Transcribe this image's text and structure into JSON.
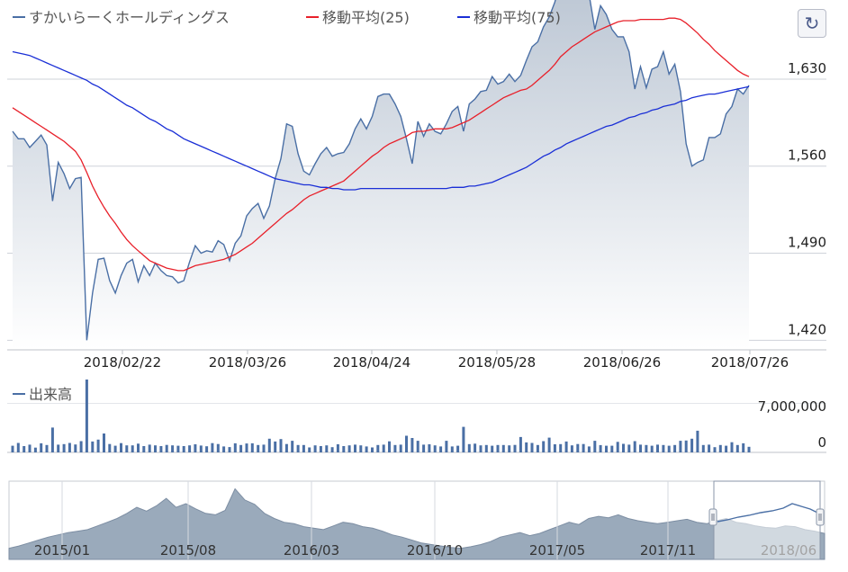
{
  "refresh_icon": "refresh-icon",
  "chart_data": [
    {
      "type": "line",
      "title": "",
      "legend": {
        "placement": "top-left",
        "items": [
          "すかいらーくホールディングス",
          "移動平均(25)",
          "移動平均(75)"
        ]
      },
      "colors": {
        "price": "#4a6fa5",
        "ma25": "#e8202a",
        "ma75": "#1a2fd6",
        "area_top": "#b9c4d2",
        "area_bottom": "#ffffff",
        "grid": "#cfd3da"
      },
      "x_tick_labels": [
        "2018/02/22",
        "2018/03/26",
        "2018/04/24",
        "2018/05/28",
        "2018/06/26",
        "2018/07/26"
      ],
      "y_tick_labels": [
        "1,420",
        "1,490",
        "1,560",
        "1,630"
      ],
      "ylim": [
        1413,
        1690
      ],
      "grid": true,
      "series": [
        {
          "name": "すかいらーくホールディングス",
          "values": [
            1588,
            1582,
            1582,
            1575,
            1580,
            1585,
            1577,
            1532,
            1563,
            1554,
            1542,
            1550,
            1551,
            1420,
            1458,
            1485,
            1486,
            1468,
            1458,
            1472,
            1482,
            1485,
            1467,
            1480,
            1472,
            1482,
            1476,
            1472,
            1471,
            1466,
            1468,
            1483,
            1496,
            1490,
            1492,
            1491,
            1500,
            1497,
            1484,
            1498,
            1504,
            1520,
            1526,
            1530,
            1518,
            1528,
            1550,
            1566,
            1594,
            1592,
            1570,
            1556,
            1553,
            1562,
            1570,
            1575,
            1568,
            1570,
            1571,
            1578,
            1590,
            1598,
            1590,
            1600,
            1616,
            1618,
            1618,
            1610,
            1600,
            1582,
            1562,
            1596,
            1584,
            1594,
            1588,
            1586,
            1594,
            1604,
            1608,
            1588,
            1610,
            1614,
            1620,
            1621,
            1632,
            1626,
            1628,
            1634,
            1628,
            1633,
            1645,
            1656,
            1660,
            1672,
            1680,
            1692,
            1710,
            1705,
            1718,
            1710,
            1696,
            1698,
            1670,
            1689,
            1682,
            1670,
            1664,
            1664,
            1652,
            1622,
            1640,
            1623,
            1638,
            1640,
            1652,
            1634,
            1642,
            1620,
            1578,
            1560,
            1563,
            1565,
            1583,
            1583,
            1586,
            1602,
            1608,
            1622,
            1618,
            1625
          ]
        },
        {
          "name": "移動平均(25)",
          "values": [
            1607,
            1604,
            1601,
            1598,
            1595,
            1592,
            1589,
            1586,
            1583,
            1580,
            1576,
            1572,
            1565,
            1555,
            1544,
            1535,
            1527,
            1520,
            1514,
            1507,
            1501,
            1496,
            1492,
            1488,
            1484,
            1482,
            1480,
            1478,
            1477,
            1476,
            1476,
            1478,
            1480,
            1481,
            1482,
            1483,
            1484,
            1485,
            1487,
            1489,
            1492,
            1495,
            1498,
            1502,
            1506,
            1510,
            1514,
            1518,
            1522,
            1525,
            1529,
            1533,
            1536,
            1538,
            1540,
            1542,
            1544,
            1546,
            1548,
            1552,
            1556,
            1560,
            1564,
            1568,
            1571,
            1575,
            1578,
            1580,
            1582,
            1584,
            1587,
            1588,
            1588,
            1589,
            1590,
            1590,
            1590,
            1591,
            1593,
            1595,
            1597,
            1600,
            1603,
            1606,
            1609,
            1612,
            1615,
            1617,
            1619,
            1621,
            1622,
            1625,
            1629,
            1633,
            1637,
            1642,
            1648,
            1652,
            1656,
            1659,
            1662,
            1665,
            1668,
            1670,
            1672,
            1674,
            1676,
            1677,
            1677,
            1677,
            1678,
            1678,
            1678,
            1678,
            1678,
            1679,
            1679,
            1678,
            1675,
            1671,
            1667,
            1662,
            1658,
            1653,
            1649,
            1645,
            1641,
            1637,
            1634,
            1632
          ]
        },
        {
          "name": "移動平均(75)",
          "values": [
            1652,
            1651,
            1650,
            1649,
            1647,
            1645,
            1643,
            1641,
            1639,
            1637,
            1635,
            1633,
            1631,
            1629,
            1626,
            1624,
            1621,
            1618,
            1615,
            1612,
            1609,
            1607,
            1604,
            1601,
            1598,
            1596,
            1593,
            1590,
            1588,
            1585,
            1582,
            1580,
            1578,
            1576,
            1574,
            1572,
            1570,
            1568,
            1566,
            1564,
            1562,
            1560,
            1558,
            1556,
            1554,
            1552,
            1550,
            1549,
            1548,
            1547,
            1546,
            1545,
            1545,
            1544,
            1543,
            1543,
            1542,
            1542,
            1541,
            1541,
            1541,
            1542,
            1542,
            1542,
            1542,
            1542,
            1542,
            1542,
            1542,
            1542,
            1542,
            1542,
            1542,
            1542,
            1542,
            1542,
            1542,
            1543,
            1543,
            1543,
            1544,
            1544,
            1545,
            1546,
            1547,
            1549,
            1551,
            1553,
            1555,
            1557,
            1559,
            1562,
            1565,
            1568,
            1570,
            1573,
            1575,
            1578,
            1580,
            1582,
            1584,
            1586,
            1588,
            1590,
            1592,
            1593,
            1595,
            1597,
            1599,
            1600,
            1602,
            1603,
            1605,
            1606,
            1608,
            1609,
            1610,
            1612,
            1613,
            1615,
            1616,
            1617,
            1618,
            1618,
            1619,
            1620,
            1621,
            1622,
            1623,
            1624
          ]
        }
      ]
    },
    {
      "type": "bar",
      "title": "",
      "legend": {
        "placement": "top-left",
        "items": [
          "出来高"
        ]
      },
      "y_tick_labels": [
        "0",
        "7,000,000"
      ],
      "ylim": [
        0,
        10400000
      ],
      "series": [
        {
          "name": "出来高",
          "values": [
            950000,
            1350000,
            900000,
            1100000,
            680000,
            1300000,
            1050000,
            3550000,
            1100000,
            1180000,
            1350000,
            1130000,
            1600000,
            10400000,
            1550000,
            1820000,
            2700000,
            1200000,
            950000,
            1320000,
            1000000,
            1000000,
            1250000,
            900000,
            1100000,
            1000000,
            900000,
            1070000,
            1000000,
            950000,
            900000,
            1000000,
            1150000,
            980000,
            870000,
            1320000,
            1200000,
            850000,
            760000,
            1300000,
            1050000,
            1270000,
            1300000,
            1050000,
            1110000,
            1950000,
            1550000,
            1900000,
            1200000,
            1650000,
            1050000,
            1050000,
            700000,
            1000000,
            900000,
            1000000,
            750000,
            1150000,
            900000,
            1000000,
            1100000,
            1000000,
            850000,
            700000,
            1050000,
            1100000,
            1580000,
            1050000,
            1100000,
            2380000,
            2050000,
            1650000,
            1100000,
            1150000,
            1000000,
            850000,
            1650000,
            850000,
            950000,
            3650000,
            1180000,
            1250000,
            1000000,
            1050000,
            950000,
            1050000,
            1050000,
            1000000,
            1070000,
            2200000,
            1420000,
            1350000,
            1050000,
            1600000,
            2100000,
            1150000,
            1180000,
            1550000,
            1000000,
            1200000,
            1200000,
            850000,
            1650000,
            1040000,
            950000,
            950000,
            1500000,
            1220000,
            1100000,
            1600000,
            1100000,
            1050000,
            950000,
            1100000,
            1050000,
            950000,
            1050000,
            1650000,
            1700000,
            1950000,
            3100000,
            1050000,
            1100000,
            750000,
            1050000,
            950000,
            1450000,
            1050000,
            1300000,
            800000
          ]
        }
      ]
    },
    {
      "type": "area",
      "title": "",
      "x_tick_labels": [
        "2015/01",
        "2015/08",
        "2016/03",
        "2016/10",
        "2017/05",
        "2017/11",
        "2018/06"
      ],
      "series": [
        {
          "name": "",
          "values": [
            0.15,
            0.18,
            0.22,
            0.26,
            0.3,
            0.33,
            0.36,
            0.38,
            0.4,
            0.45,
            0.5,
            0.55,
            0.62,
            0.7,
            0.65,
            0.72,
            0.82,
            0.7,
            0.75,
            0.68,
            0.62,
            0.6,
            0.66,
            0.95,
            0.8,
            0.74,
            0.62,
            0.55,
            0.5,
            0.48,
            0.44,
            0.42,
            0.4,
            0.45,
            0.5,
            0.48,
            0.44,
            0.42,
            0.38,
            0.33,
            0.3,
            0.26,
            0.22,
            0.2,
            0.18,
            0.16,
            0.15,
            0.17,
            0.2,
            0.24,
            0.3,
            0.33,
            0.36,
            0.32,
            0.35,
            0.4,
            0.45,
            0.5,
            0.47,
            0.55,
            0.58,
            0.56,
            0.6,
            0.55,
            0.52,
            0.5,
            0.48,
            0.5,
            0.52,
            0.54,
            0.5,
            0.48,
            0.52,
            0.55,
            0.5,
            0.48,
            0.45,
            0.43,
            0.42,
            0.45,
            0.44,
            0.4,
            0.38,
            0.35
          ]
        }
      ]
    }
  ]
}
